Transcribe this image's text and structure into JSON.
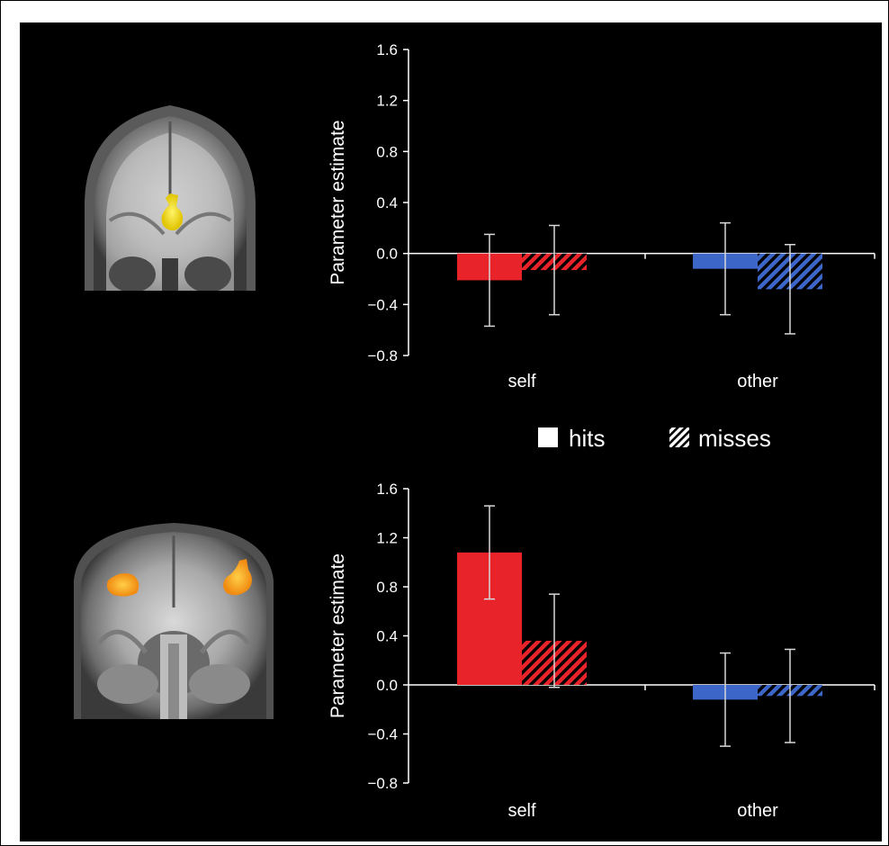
{
  "legend": {
    "hits_label": "hits",
    "misses_label": "misses"
  },
  "colors": {
    "self": "#e8232a",
    "other": "#3d66c9",
    "axis": "#ffffff",
    "background": "#000000",
    "error_bar": "#d8d8d8",
    "activation_top": "#f0e010",
    "activation_bottom": "#f7a21a"
  },
  "brain_images": [
    {
      "name": "coronal-slice-top",
      "activation": "single midline blob"
    },
    {
      "name": "coronal-slice-bottom",
      "activation": "bilateral blobs"
    }
  ],
  "chart_data": [
    {
      "type": "bar",
      "ylabel": "Parameter estimate",
      "ylim": [
        -0.8,
        1.6
      ],
      "yticks": [
        "1.6",
        "1.2",
        "0.8",
        "0.4",
        "0.0",
        "−0.4",
        "−0.8"
      ],
      "categories": [
        "self",
        "other"
      ],
      "series": [
        {
          "name": "hits",
          "pattern": "solid",
          "values": [
            -0.21,
            -0.12
          ],
          "errors": [
            0.36,
            0.36
          ]
        },
        {
          "name": "misses",
          "pattern": "hatched",
          "values": [
            -0.13,
            -0.28
          ],
          "errors": [
            0.35,
            0.35
          ]
        }
      ],
      "grid": false,
      "legend": "between panels"
    },
    {
      "type": "bar",
      "ylabel": "Parameter estimate",
      "ylim": [
        -0.8,
        1.6
      ],
      "yticks": [
        "1.6",
        "1.2",
        "0.8",
        "0.4",
        "0.0",
        "−0.4",
        "−0.8"
      ],
      "categories": [
        "self",
        "other"
      ],
      "series": [
        {
          "name": "hits",
          "pattern": "solid",
          "values": [
            1.08,
            -0.12
          ],
          "errors": [
            0.38,
            0.38
          ]
        },
        {
          "name": "misses",
          "pattern": "hatched",
          "values": [
            0.36,
            -0.09
          ],
          "errors": [
            0.38,
            0.38
          ]
        }
      ],
      "grid": false,
      "legend": "between panels"
    }
  ]
}
